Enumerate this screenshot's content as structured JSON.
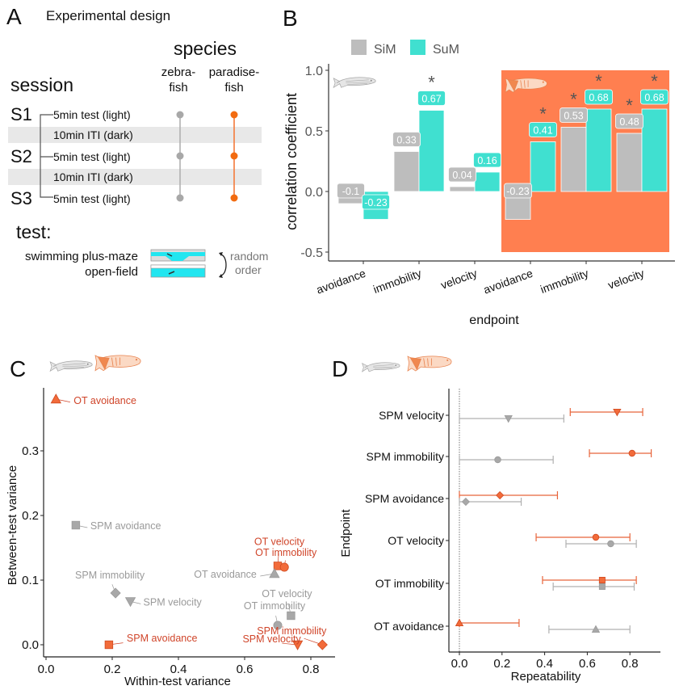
{
  "colors": {
    "zebrafish": "#b9b9b9",
    "paradisefish": "#f26b3a",
    "sum": "#40e0d0",
    "sim": "#bdbdbd",
    "paradise_panel_bg": "#ff7f50",
    "label_red": "#d0452a",
    "label_gray": "#9a9a9a"
  },
  "panelA": {
    "letter": "A",
    "title": "Experimental design",
    "species_header": "species",
    "species": [
      "zebra-\nfish",
      "paradise-\nfish"
    ],
    "species_line1": [
      "zebra-",
      "paradise-"
    ],
    "species_line2": [
      "fish",
      "fish"
    ],
    "session_header": "session",
    "sessions": [
      "S1",
      "S2",
      "S3"
    ],
    "rows": [
      {
        "label": "5min test (light)",
        "type": "test"
      },
      {
        "label": "10min ITI (dark)",
        "type": "iti"
      },
      {
        "label": "5min test (light)",
        "type": "test"
      },
      {
        "label": "10min ITI (dark)",
        "type": "iti"
      },
      {
        "label": "5min test (light)",
        "type": "test"
      }
    ],
    "test_header": "test:",
    "tests": [
      "swimming plus-maze",
      "open-field"
    ],
    "order_note_1": "random",
    "order_note_2": "order"
  },
  "chart_data": [
    {
      "id": "B",
      "letter": "B",
      "type": "bar",
      "title": "",
      "xlabel": "endpoint",
      "ylabel": "correlation coefficient",
      "ylim": [
        -0.5,
        1.0
      ],
      "yticks": [
        -0.5,
        0.0,
        0.5,
        1.0
      ],
      "ytick_labels": [
        "-0.5",
        "0.0",
        "0.5",
        "1.0"
      ],
      "legend": {
        "position": "top",
        "entries": [
          "SiM",
          "SuM"
        ]
      },
      "categories": [
        "avoidance",
        "immobility",
        "velocity",
        "avoidance",
        "immobility",
        "velocity"
      ],
      "groups": [
        {
          "species": "zebrafish",
          "categories": [
            0,
            1,
            2
          ]
        },
        {
          "species": "paradisefish",
          "categories": [
            3,
            4,
            5
          ],
          "highlight": true
        }
      ],
      "series": [
        {
          "name": "SiM",
          "values": [
            -0.1,
            0.33,
            0.04,
            -0.23,
            0.53,
            0.48
          ],
          "labels": [
            "-0.1",
            "0.33",
            "0.04",
            "-0.23",
            "0.53",
            "0.48"
          ],
          "significant": [
            false,
            false,
            false,
            false,
            true,
            true
          ]
        },
        {
          "name": "SuM",
          "values": [
            -0.23,
            0.67,
            0.16,
            0.41,
            0.68,
            0.68
          ],
          "labels": [
            "-0.23",
            "0.67",
            "0.16",
            "0.41",
            "0.68",
            "0.68"
          ],
          "significant": [
            false,
            true,
            false,
            true,
            true,
            true
          ]
        }
      ],
      "significance_marker": "*"
    },
    {
      "id": "C",
      "letter": "C",
      "type": "scatter",
      "xlabel": "Within-test variance",
      "ylabel": "Between-test variance",
      "xlim": [
        0.0,
        0.85
      ],
      "ylim": [
        0.0,
        0.38
      ],
      "xticks": [
        0.0,
        0.2,
        0.4,
        0.6,
        0.8
      ],
      "xtick_labels": [
        "0.0",
        "0.2",
        "0.4",
        "0.6",
        "0.8"
      ],
      "yticks": [
        0.0,
        0.1,
        0.2,
        0.3
      ],
      "ytick_labels": [
        "0.0",
        "0.1",
        "0.2",
        "0.3"
      ],
      "points": [
        {
          "label": "OT avoidance",
          "species": "paradisefish",
          "shape": "triangle-up",
          "x": 0.03,
          "y": 0.38
        },
        {
          "label": "SPM avoidance",
          "species": "zebrafish",
          "shape": "square",
          "x": 0.09,
          "y": 0.185
        },
        {
          "label": "OT velocity",
          "species": "paradisefish",
          "shape": "square",
          "x": 0.7,
          "y": 0.122
        },
        {
          "label": "OT immobility",
          "species": "paradisefish",
          "shape": "circle",
          "x": 0.72,
          "y": 0.12
        },
        {
          "label": "OT avoidance",
          "species": "zebrafish",
          "shape": "triangle-up",
          "x": 0.69,
          "y": 0.11
        },
        {
          "label": "SPM immobility",
          "species": "zebrafish",
          "shape": "diamond",
          "x": 0.21,
          "y": 0.08
        },
        {
          "label": "SPM velocity",
          "species": "zebrafish",
          "shape": "triangle-down",
          "x": 0.255,
          "y": 0.067
        },
        {
          "label": "OT velocity",
          "species": "zebrafish",
          "shape": "square",
          "x": 0.74,
          "y": 0.045
        },
        {
          "label": "OT immobility",
          "species": "zebrafish",
          "shape": "circle",
          "x": 0.7,
          "y": 0.03
        },
        {
          "label": "SPM avoidance",
          "species": "paradisefish",
          "shape": "square",
          "x": 0.19,
          "y": 0.0
        },
        {
          "label": "SPM immobility",
          "species": "paradisefish",
          "shape": "diamond",
          "x": 0.835,
          "y": 0.0
        },
        {
          "label": "SPM velocity",
          "species": "paradisefish",
          "shape": "triangle-down",
          "x": 0.76,
          "y": 0.0
        }
      ]
    },
    {
      "id": "D",
      "letter": "D",
      "type": "scatter",
      "subtype": "forest",
      "xlabel": "Repeatability",
      "ylabel": "Endpoint",
      "xlim": [
        0.0,
        0.9
      ],
      "xticks": [
        0.0,
        0.2,
        0.4,
        0.6,
        0.8
      ],
      "xtick_labels": [
        "0.0",
        "0.2",
        "0.4",
        "0.6",
        "0.8"
      ],
      "reference_line": 0.0,
      "categories": [
        "SPM velocity",
        "SPM immobility",
        "SPM avoidance",
        "OT velocity",
        "OT immobility",
        "OT avoidance"
      ],
      "series": [
        {
          "name": "paradisefish",
          "estimates": [
            {
              "endpoint": "SPM velocity",
              "shape": "triangle-down",
              "value": 0.74,
              "lo": 0.52,
              "hi": 0.86
            },
            {
              "endpoint": "SPM immobility",
              "shape": "circle",
              "value": 0.81,
              "lo": 0.61,
              "hi": 0.9
            },
            {
              "endpoint": "SPM avoidance",
              "shape": "diamond",
              "value": 0.19,
              "lo": 0.0,
              "hi": 0.46
            },
            {
              "endpoint": "OT velocity",
              "shape": "circle",
              "value": 0.64,
              "lo": 0.36,
              "hi": 0.8
            },
            {
              "endpoint": "OT immobility",
              "shape": "square",
              "value": 0.67,
              "lo": 0.39,
              "hi": 0.83
            },
            {
              "endpoint": "OT avoidance",
              "shape": "triangle-up",
              "value": 0.0,
              "lo": 0.0,
              "hi": 0.28
            }
          ]
        },
        {
          "name": "zebrafish",
          "estimates": [
            {
              "endpoint": "SPM velocity",
              "shape": "triangle-down",
              "value": 0.23,
              "lo": 0.0,
              "hi": 0.49
            },
            {
              "endpoint": "SPM immobility",
              "shape": "circle",
              "value": 0.18,
              "lo": 0.0,
              "hi": 0.44
            },
            {
              "endpoint": "SPM avoidance",
              "shape": "diamond",
              "value": 0.03,
              "lo": 0.0,
              "hi": 0.29
            },
            {
              "endpoint": "OT velocity",
              "shape": "circle",
              "value": 0.71,
              "lo": 0.5,
              "hi": 0.83
            },
            {
              "endpoint": "OT immobility",
              "shape": "square",
              "value": 0.67,
              "lo": 0.44,
              "hi": 0.82
            },
            {
              "endpoint": "OT avoidance",
              "shape": "triangle-up",
              "value": 0.64,
              "lo": 0.42,
              "hi": 0.8
            }
          ]
        }
      ]
    }
  ]
}
